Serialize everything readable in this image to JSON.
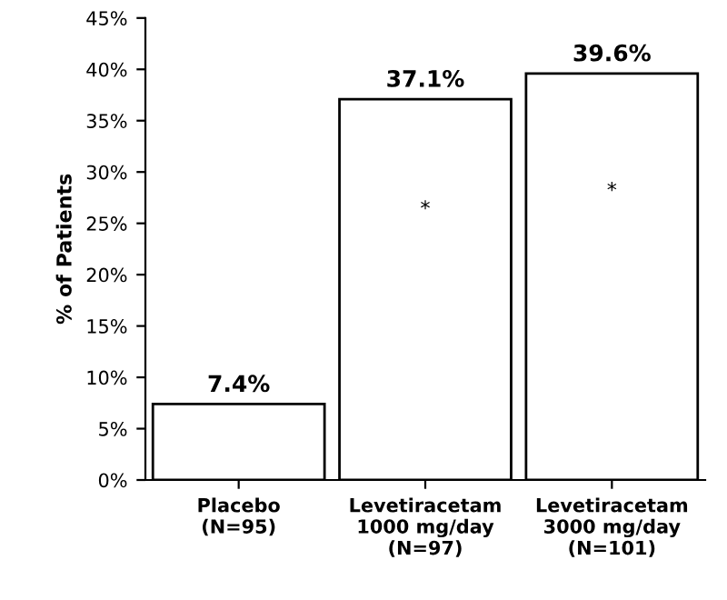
{
  "chart_data": {
    "type": "bar",
    "ylabel": "% of Patients",
    "categories": [
      "Placebo\n(N=95)",
      "Levetiracetam\n1000 mg/day\n(N=97)",
      "Levetiracetam\n3000 mg/day\n(N=101)"
    ],
    "values": [
      7.4,
      37.1,
      39.6
    ],
    "color": "#ffffff",
    "value_labels": [
      "7.4%",
      "37.1%",
      "39.6%"
    ],
    "ylim": [
      0,
      45
    ],
    "yticks": [
      {
        "value": 0,
        "label": "0%"
      },
      {
        "value": 5,
        "label": "5%"
      },
      {
        "value": 10,
        "label": "10%"
      },
      {
        "value": 15,
        "label": "15%"
      },
      {
        "value": 20,
        "label": "20%"
      },
      {
        "value": 25,
        "label": "25%"
      },
      {
        "value": 30,
        "label": "30%"
      },
      {
        "value": 35,
        "label": "35%"
      },
      {
        "value": 40,
        "label": "40%"
      },
      {
        "value": 45,
        "label": "45%"
      }
    ],
    "annotations": [
      "*",
      "*"
    ],
    "grid": false,
    "legend": false
  }
}
